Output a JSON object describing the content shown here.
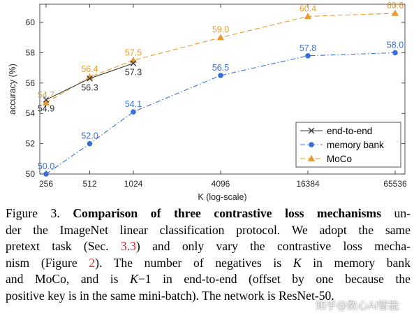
{
  "chart_data": {
    "type": "line",
    "xlabel": "K (log-scale)",
    "ylabel": "accuracy (%)",
    "x_scale": "log",
    "x_ticks": [
      256,
      512,
      1024,
      4096,
      16384,
      65536
    ],
    "x_tick_labels": [
      "256",
      "512",
      "1024",
      "4096",
      "16384",
      "65536"
    ],
    "ylim": [
      50,
      61.2
    ],
    "y_ticks": [
      50,
      52,
      54,
      56,
      58,
      60
    ],
    "y_tick_labels": [
      "50",
      "52",
      "54",
      "56",
      "58",
      "60"
    ],
    "grid": false,
    "legend_position": "bottom-right",
    "series": [
      {
        "name": "end-to-end",
        "color": "#3a3a3a",
        "marker": "x",
        "line_style": "solid",
        "x": [
          256,
          512,
          1024
        ],
        "y": [
          54.9,
          56.3,
          57.3
        ],
        "labels": [
          "54.9",
          "56.3",
          "57.3"
        ]
      },
      {
        "name": "memory bank",
        "color": "#3a6fd8",
        "marker": "circle",
        "line_style": "dashdot",
        "x": [
          256,
          512,
          1024,
          4096,
          16384,
          65536
        ],
        "y": [
          50.0,
          52.0,
          54.1,
          56.5,
          57.8,
          58.0
        ],
        "labels": [
          "50.0",
          "52.0",
          "54.1",
          "56.5",
          "57.8",
          "58.0"
        ]
      },
      {
        "name": "MoCo",
        "color": "#e89a32",
        "marker": "triangle",
        "line_style": "dashed",
        "x": [
          256,
          512,
          1024,
          4096,
          16384,
          65536
        ],
        "y": [
          54.7,
          56.4,
          57.5,
          59.0,
          60.4,
          60.6
        ],
        "labels": [
          "54.7",
          "56.4",
          "57.5",
          "59.0",
          "60.4",
          "60.6"
        ]
      }
    ]
  },
  "caption": {
    "line1_pre": "Figure 3. ",
    "line1_bold": "Comparison of three contrastive loss mechanisms",
    "line1_post": " un-",
    "line2": "der the ImageNet linear classification protocol. We adopt the same",
    "line3_pre": "pretext task (Sec. ",
    "line3_ref": "3.3",
    "line3_post": ") and only vary the contrastive loss mecha-",
    "line4_pre": "nism (Figure ",
    "line4_ref": "2",
    "line4_mid": "). The number of negatives is ",
    "line4_var": "K",
    "line4_post": " in memory bank",
    "line5_pre": "and MoCo, and is ",
    "line5_var": "K",
    "line5_post": "−1 in end-to-end (offset by one because the",
    "line6": "positive key is in the same mini-batch). The network is ResNet-50."
  },
  "watermark": "知乎@数心AI智能"
}
